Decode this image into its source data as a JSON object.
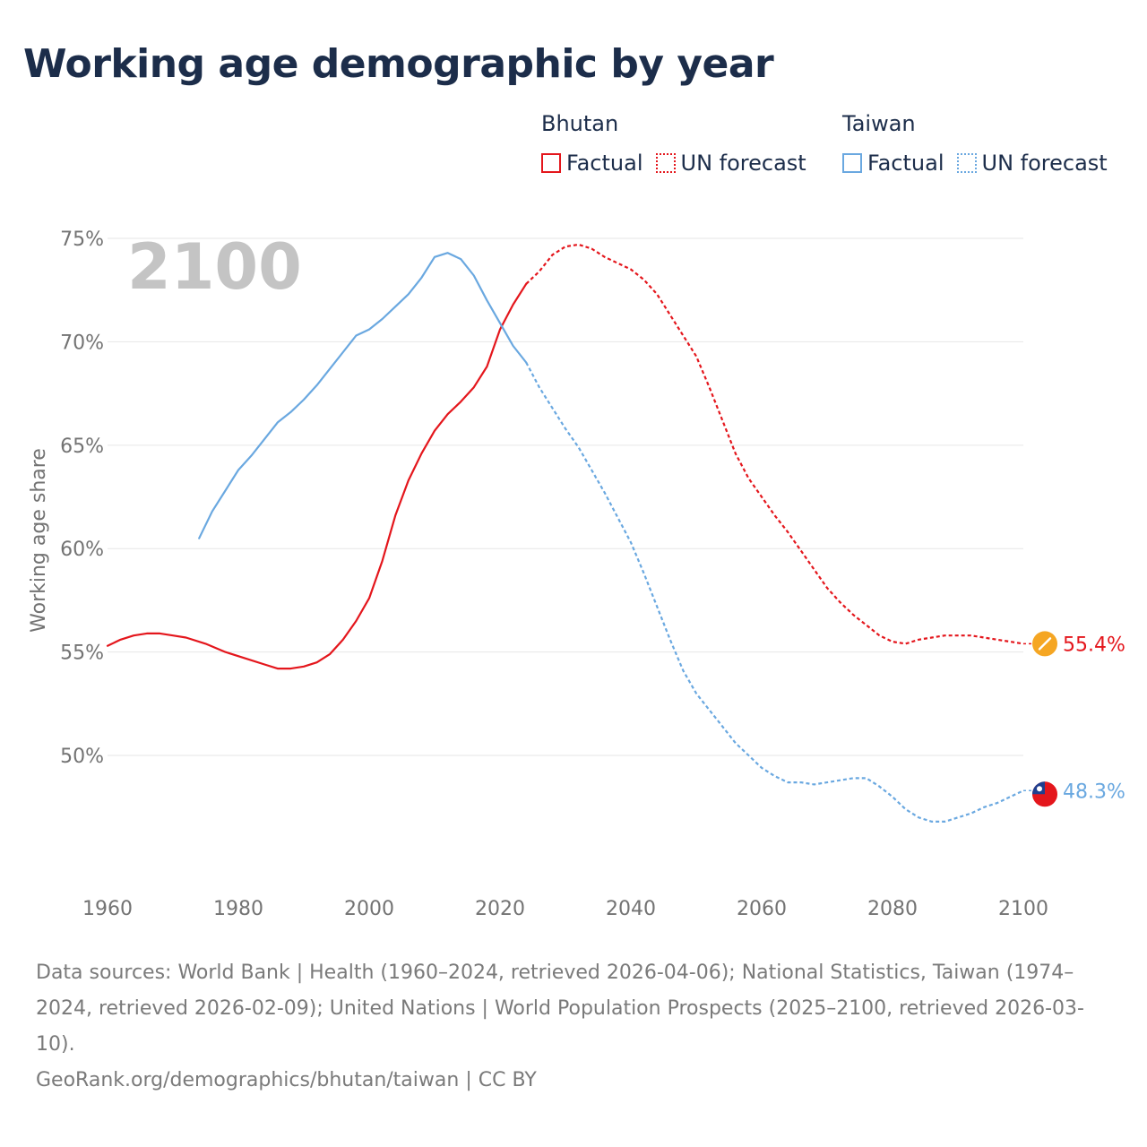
{
  "title": "Working age demographic by year",
  "colors": {
    "bhutan": "#e4161c",
    "taiwan": "#6aa8e0",
    "title": "#1c2d4a",
    "axis_text": "#737373",
    "year_watermark": "#c4c4c4",
    "grid": "#e6e6e6",
    "bhutan_flag": "#f5a623",
    "taiwan_flag_red": "#e4161c",
    "taiwan_flag_blue": "#1f3f8f"
  },
  "legend": [
    {
      "country": "Bhutan",
      "factual_label": "Factual",
      "forecast_label": "UN forecast",
      "color_key": "bhutan",
      "flag_icon": "bhutan-flag-icon"
    },
    {
      "country": "Taiwan",
      "factual_label": "Factual",
      "forecast_label": "UN forecast",
      "color_key": "taiwan",
      "flag_icon": "taiwan-flag-icon"
    }
  ],
  "year_label": "2100",
  "footer": {
    "sources": "Data sources: World Bank | Health (1960–2024, retrieved 2026-04-06); National Statistics, Taiwan (1974–2024, retrieved 2026-02-09); United Nations | World Population Prospects (2025–2100, retrieved 2026-03-10).",
    "credit": "GeoRank.org/demographics/bhutan/taiwan | CC BY"
  },
  "chart_data": {
    "type": "line",
    "title": "Working age demographic by year",
    "xlabel": "",
    "ylabel": "Working age share",
    "xlim": [
      1960,
      2100
    ],
    "ylim": [
      44.5,
      75
    ],
    "x_ticks": [
      1960,
      1980,
      2000,
      2020,
      2040,
      2060,
      2080,
      2100
    ],
    "x_tick_labels": [
      "1960",
      "1980",
      "2000",
      "2020",
      "2040",
      "2060",
      "2080",
      "2100"
    ],
    "y_ticks": [
      50,
      55,
      60,
      65,
      70,
      75
    ],
    "y_tick_labels": [
      "50%",
      "55%",
      "60%",
      "65%",
      "70%",
      "75%"
    ],
    "grid": true,
    "series": [
      {
        "name": "Bhutan",
        "color_key": "bhutan",
        "end_label": "55.4%",
        "end_value": 55.4,
        "factual": [
          [
            1960,
            55.3
          ],
          [
            1962,
            55.6
          ],
          [
            1964,
            55.8
          ],
          [
            1966,
            55.9
          ],
          [
            1968,
            55.9
          ],
          [
            1970,
            55.8
          ],
          [
            1972,
            55.7
          ],
          [
            1975,
            55.4
          ],
          [
            1978,
            55.0
          ],
          [
            1981,
            54.7
          ],
          [
            1984,
            54.4
          ],
          [
            1986,
            54.2
          ],
          [
            1988,
            54.2
          ],
          [
            1990,
            54.3
          ],
          [
            1992,
            54.5
          ],
          [
            1994,
            54.9
          ],
          [
            1996,
            55.6
          ],
          [
            1998,
            56.5
          ],
          [
            2000,
            57.6
          ],
          [
            2002,
            59.4
          ],
          [
            2004,
            61.6
          ],
          [
            2006,
            63.3
          ],
          [
            2008,
            64.6
          ],
          [
            2010,
            65.7
          ],
          [
            2012,
            66.5
          ],
          [
            2014,
            67.1
          ],
          [
            2016,
            67.8
          ],
          [
            2018,
            68.8
          ],
          [
            2020,
            70.6
          ],
          [
            2022,
            71.8
          ],
          [
            2024,
            72.8
          ]
        ],
        "forecast": [
          [
            2024,
            72.8
          ],
          [
            2026,
            73.4
          ],
          [
            2028,
            74.2
          ],
          [
            2030,
            74.6
          ],
          [
            2032,
            74.7
          ],
          [
            2034,
            74.5
          ],
          [
            2036,
            74.1
          ],
          [
            2038,
            73.8
          ],
          [
            2040,
            73.5
          ],
          [
            2042,
            73.0
          ],
          [
            2044,
            72.3
          ],
          [
            2046,
            71.3
          ],
          [
            2048,
            70.3
          ],
          [
            2050,
            69.3
          ],
          [
            2052,
            67.8
          ],
          [
            2054,
            66.2
          ],
          [
            2056,
            64.6
          ],
          [
            2058,
            63.4
          ],
          [
            2060,
            62.5
          ],
          [
            2062,
            61.6
          ],
          [
            2064,
            60.8
          ],
          [
            2066,
            59.9
          ],
          [
            2068,
            59.0
          ],
          [
            2070,
            58.1
          ],
          [
            2072,
            57.4
          ],
          [
            2074,
            56.8
          ],
          [
            2076,
            56.3
          ],
          [
            2078,
            55.8
          ],
          [
            2080,
            55.5
          ],
          [
            2082,
            55.4
          ],
          [
            2084,
            55.6
          ],
          [
            2086,
            55.7
          ],
          [
            2088,
            55.8
          ],
          [
            2090,
            55.8
          ],
          [
            2092,
            55.8
          ],
          [
            2094,
            55.7
          ],
          [
            2096,
            55.6
          ],
          [
            2098,
            55.5
          ],
          [
            2100,
            55.4
          ]
        ]
      },
      {
        "name": "Taiwan",
        "color_key": "taiwan",
        "end_label": "48.3%",
        "end_value": 48.3,
        "factual": [
          [
            1974,
            60.5
          ],
          [
            1976,
            61.8
          ],
          [
            1978,
            62.8
          ],
          [
            1980,
            63.8
          ],
          [
            1982,
            64.5
          ],
          [
            1984,
            65.3
          ],
          [
            1986,
            66.1
          ],
          [
            1988,
            66.6
          ],
          [
            1990,
            67.2
          ],
          [
            1992,
            67.9
          ],
          [
            1994,
            68.7
          ],
          [
            1996,
            69.5
          ],
          [
            1998,
            70.3
          ],
          [
            2000,
            70.6
          ],
          [
            2002,
            71.1
          ],
          [
            2004,
            71.7
          ],
          [
            2006,
            72.3
          ],
          [
            2008,
            73.1
          ],
          [
            2010,
            74.1
          ],
          [
            2012,
            74.3
          ],
          [
            2014,
            74.0
          ],
          [
            2016,
            73.2
          ],
          [
            2018,
            72.0
          ],
          [
            2020,
            70.9
          ],
          [
            2022,
            69.8
          ],
          [
            2024,
            69.0
          ]
        ],
        "forecast": [
          [
            2024,
            69.0
          ],
          [
            2026,
            67.8
          ],
          [
            2028,
            66.8
          ],
          [
            2030,
            65.8
          ],
          [
            2032,
            64.9
          ],
          [
            2034,
            63.8
          ],
          [
            2036,
            62.7
          ],
          [
            2038,
            61.5
          ],
          [
            2040,
            60.3
          ],
          [
            2042,
            58.8
          ],
          [
            2044,
            57.2
          ],
          [
            2046,
            55.6
          ],
          [
            2048,
            54.1
          ],
          [
            2050,
            53.0
          ],
          [
            2052,
            52.2
          ],
          [
            2054,
            51.4
          ],
          [
            2056,
            50.6
          ],
          [
            2058,
            50.0
          ],
          [
            2060,
            49.4
          ],
          [
            2062,
            49.0
          ],
          [
            2064,
            48.7
          ],
          [
            2066,
            48.7
          ],
          [
            2068,
            48.6
          ],
          [
            2070,
            48.7
          ],
          [
            2072,
            48.8
          ],
          [
            2074,
            48.9
          ],
          [
            2076,
            48.9
          ],
          [
            2078,
            48.5
          ],
          [
            2080,
            48.0
          ],
          [
            2082,
            47.4
          ],
          [
            2084,
            47.0
          ],
          [
            2086,
            46.8
          ],
          [
            2088,
            46.8
          ],
          [
            2090,
            47.0
          ],
          [
            2092,
            47.2
          ],
          [
            2094,
            47.5
          ],
          [
            2096,
            47.7
          ],
          [
            2098,
            48.0
          ],
          [
            2100,
            48.3
          ]
        ]
      }
    ]
  }
}
